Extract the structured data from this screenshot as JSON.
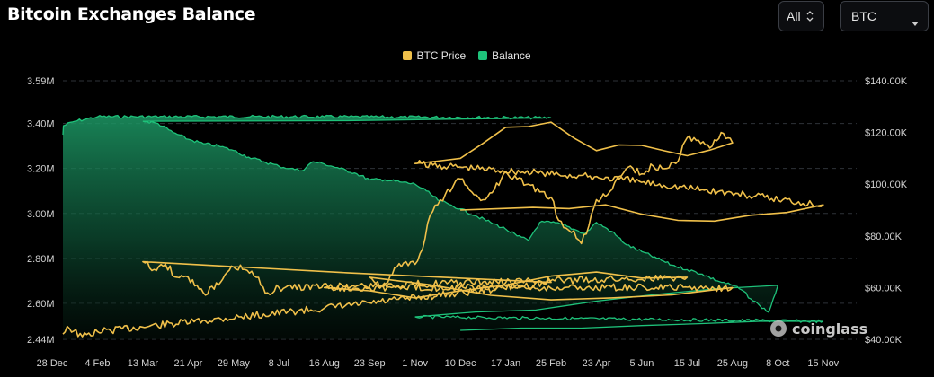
{
  "header": {
    "title": "Bitcoin Exchanges Balance",
    "range_select": "All",
    "coin_select": "BTC"
  },
  "legend": [
    {
      "label": "BTC Price",
      "color": "#f0c04a"
    },
    {
      "label": "Balance",
      "color": "#1ec27a"
    }
  ],
  "watermark": "coinglass",
  "colors": {
    "background": "#000000",
    "price_line": "#f0c04a",
    "balance_line": "#1ec27a",
    "grid": "#2e3238"
  },
  "chart_data": {
    "type": "area",
    "grid": true,
    "legend_position": "top-center",
    "x_ticks": [
      "28 Dec",
      "4 Feb",
      "13 Mar",
      "21 Apr",
      "29 May",
      "8 Jul",
      "16 Aug",
      "23 Sep",
      "1 Nov",
      "10 Dec",
      "17 Jan",
      "25 Feb",
      "23 Apr",
      "5 Jun",
      "15 Jul",
      "25 Aug",
      "8 Oct",
      "15 Nov"
    ],
    "y_left": {
      "label": "",
      "range": [
        2440000,
        3590000
      ],
      "ticks": [
        "3.59M",
        "3.40M",
        "3.20M",
        "3.00M",
        "2.80M",
        "2.60M",
        "2.44M"
      ]
    },
    "y_right": {
      "label": "",
      "range": [
        40000,
        140000
      ],
      "ticks": [
        "$140.00K",
        "$120.00K",
        "$100.00K",
        "$80.00K",
        "$60.00K",
        "$40.00K"
      ]
    },
    "series": [
      {
        "name": "Balance",
        "type": "area",
        "axis": "left",
        "x": [
          "28 Dec",
          "5 Jan",
          "15 Jan",
          "25 Jan",
          "4 Feb",
          "15 Feb",
          "25 Feb",
          "13 Mar",
          "25 Mar",
          "5 Apr",
          "21 Apr",
          "5 May",
          "15 May",
          "29 May",
          "10 Jun",
          "25 Jun",
          "8 Jul",
          "20 Jul",
          "1 Aug",
          "6 Aug",
          "16 Aug",
          "1 Sep",
          "10 Sep",
          "23 Sep",
          "5 Oct",
          "20 Oct",
          "1 Nov",
          "10 Nov",
          "20 Nov",
          "1 Dec",
          "10 Dec",
          "25 Dec",
          "5 Jan",
          "17 Jan",
          "1 Feb",
          "10 Feb",
          "12 Feb",
          "25 Feb",
          "10 Mar",
          "25 Mar",
          "10 Apr",
          "23 Apr",
          "10 May",
          "25 May",
          "5 Jun",
          "20 Jun",
          "1 Jul",
          "15 Jul",
          "1 Aug",
          "10 Aug",
          "25 Aug",
          "10 Sep",
          "20 Sep",
          "25 Sep",
          "1 Oct",
          "8 Oct",
          "15 Oct",
          "25 Oct",
          "1 Nov",
          "15 Nov",
          "25 Nov",
          "5 Dec",
          "10 Dec"
        ],
        "values": [
          3350000,
          3390000,
          3410000,
          3420000,
          3430000,
          3430000,
          3425000,
          3410000,
          3400000,
          3360000,
          3330000,
          3310000,
          3300000,
          3280000,
          3250000,
          3230000,
          3210000,
          3200000,
          3190000,
          3230000,
          3220000,
          3200000,
          3180000,
          3150000,
          3150000,
          3140000,
          3130000,
          3100000,
          3060000,
          3040000,
          3020000,
          2990000,
          2960000,
          2930000,
          2900000,
          2880000,
          2960000,
          2960000,
          2950000,
          2930000,
          2910000,
          2960000,
          2920000,
          2860000,
          2830000,
          2800000,
          2770000,
          2750000,
          2730000,
          2700000,
          2680000,
          2660000,
          2620000,
          2590000,
          2560000,
          2680000,
          2640000,
          2570000,
          2540000,
          2520000,
          2510000,
          2490000,
          2480000
        ]
      },
      {
        "name": "BTC Price",
        "type": "line",
        "axis": "right",
        "x": [
          "28 Dec",
          "10 Jan",
          "20 Jan",
          "4 Feb",
          "15 Feb",
          "25 Feb",
          "13 Mar",
          "20 Mar",
          "1 Apr",
          "10 Apr",
          "21 Apr",
          "1 May",
          "15 May",
          "29 May",
          "10 Jun",
          "20 Jun",
          "1 Jul",
          "8 Jul",
          "15 Jul",
          "25 Jul",
          "1 Aug",
          "6 Aug",
          "16 Aug",
          "25 Aug",
          "5 Sep",
          "10 Sep",
          "23 Sep",
          "1 Oct",
          "10 Oct",
          "20 Oct",
          "28 Oct",
          "1 Nov",
          "5 Nov",
          "10 Nov",
          "20 Nov",
          "1 Dec",
          "5 Dec",
          "10 Dec",
          "20 Dec",
          "1 Jan",
          "10 Jan",
          "17 Jan",
          "25 Jan",
          "1 Feb",
          "10 Feb",
          "25 Feb",
          "5 Mar",
          "15 Mar",
          "1 Apr",
          "7 Apr",
          "15 Apr",
          "23 Apr",
          "5 May",
          "15 May",
          "22 May",
          "5 Jun",
          "15 Jun",
          "25 Jun",
          "5 Jul",
          "15 Jul",
          "25 Jul",
          "1 Aug",
          "15 Aug",
          "25 Aug",
          "5 Sep",
          "15 Sep",
          "25 Sep",
          "6 Oct",
          "10 Oct",
          "20 Oct",
          "1 Nov",
          "8 Nov",
          "15 Nov",
          "20 Nov",
          "25 Nov",
          "1 Dec",
          "5 Dec",
          "10 Dec"
        ],
        "values": [
          42000,
          45000,
          41000,
          43000,
          52000,
          62000,
          70000,
          67000,
          69000,
          64000,
          64000,
          58000,
          61000,
          68000,
          67000,
          64000,
          58000,
          60000,
          64000,
          66000,
          61000,
          56000,
          60000,
          60000,
          56000,
          57000,
          64000,
          60000,
          62000,
          68000,
          70000,
          69000,
          75000,
          88000,
          92000,
          96000,
          99000,
          102000,
          97000,
          94000,
          98000,
          105000,
          102000,
          100000,
          97000,
          95000,
          86000,
          83000,
          82000,
          77000,
          84000,
          94000,
          96000,
          103000,
          107000,
          104000,
          107000,
          106000,
          108000,
          118000,
          117000,
          114000,
          120000,
          116000,
          111000,
          115000,
          113000,
          124000,
          122000,
          110000,
          108000,
          102000,
          92000,
          88000,
          86000,
          92000,
          91000,
          90000
        ]
      }
    ]
  }
}
